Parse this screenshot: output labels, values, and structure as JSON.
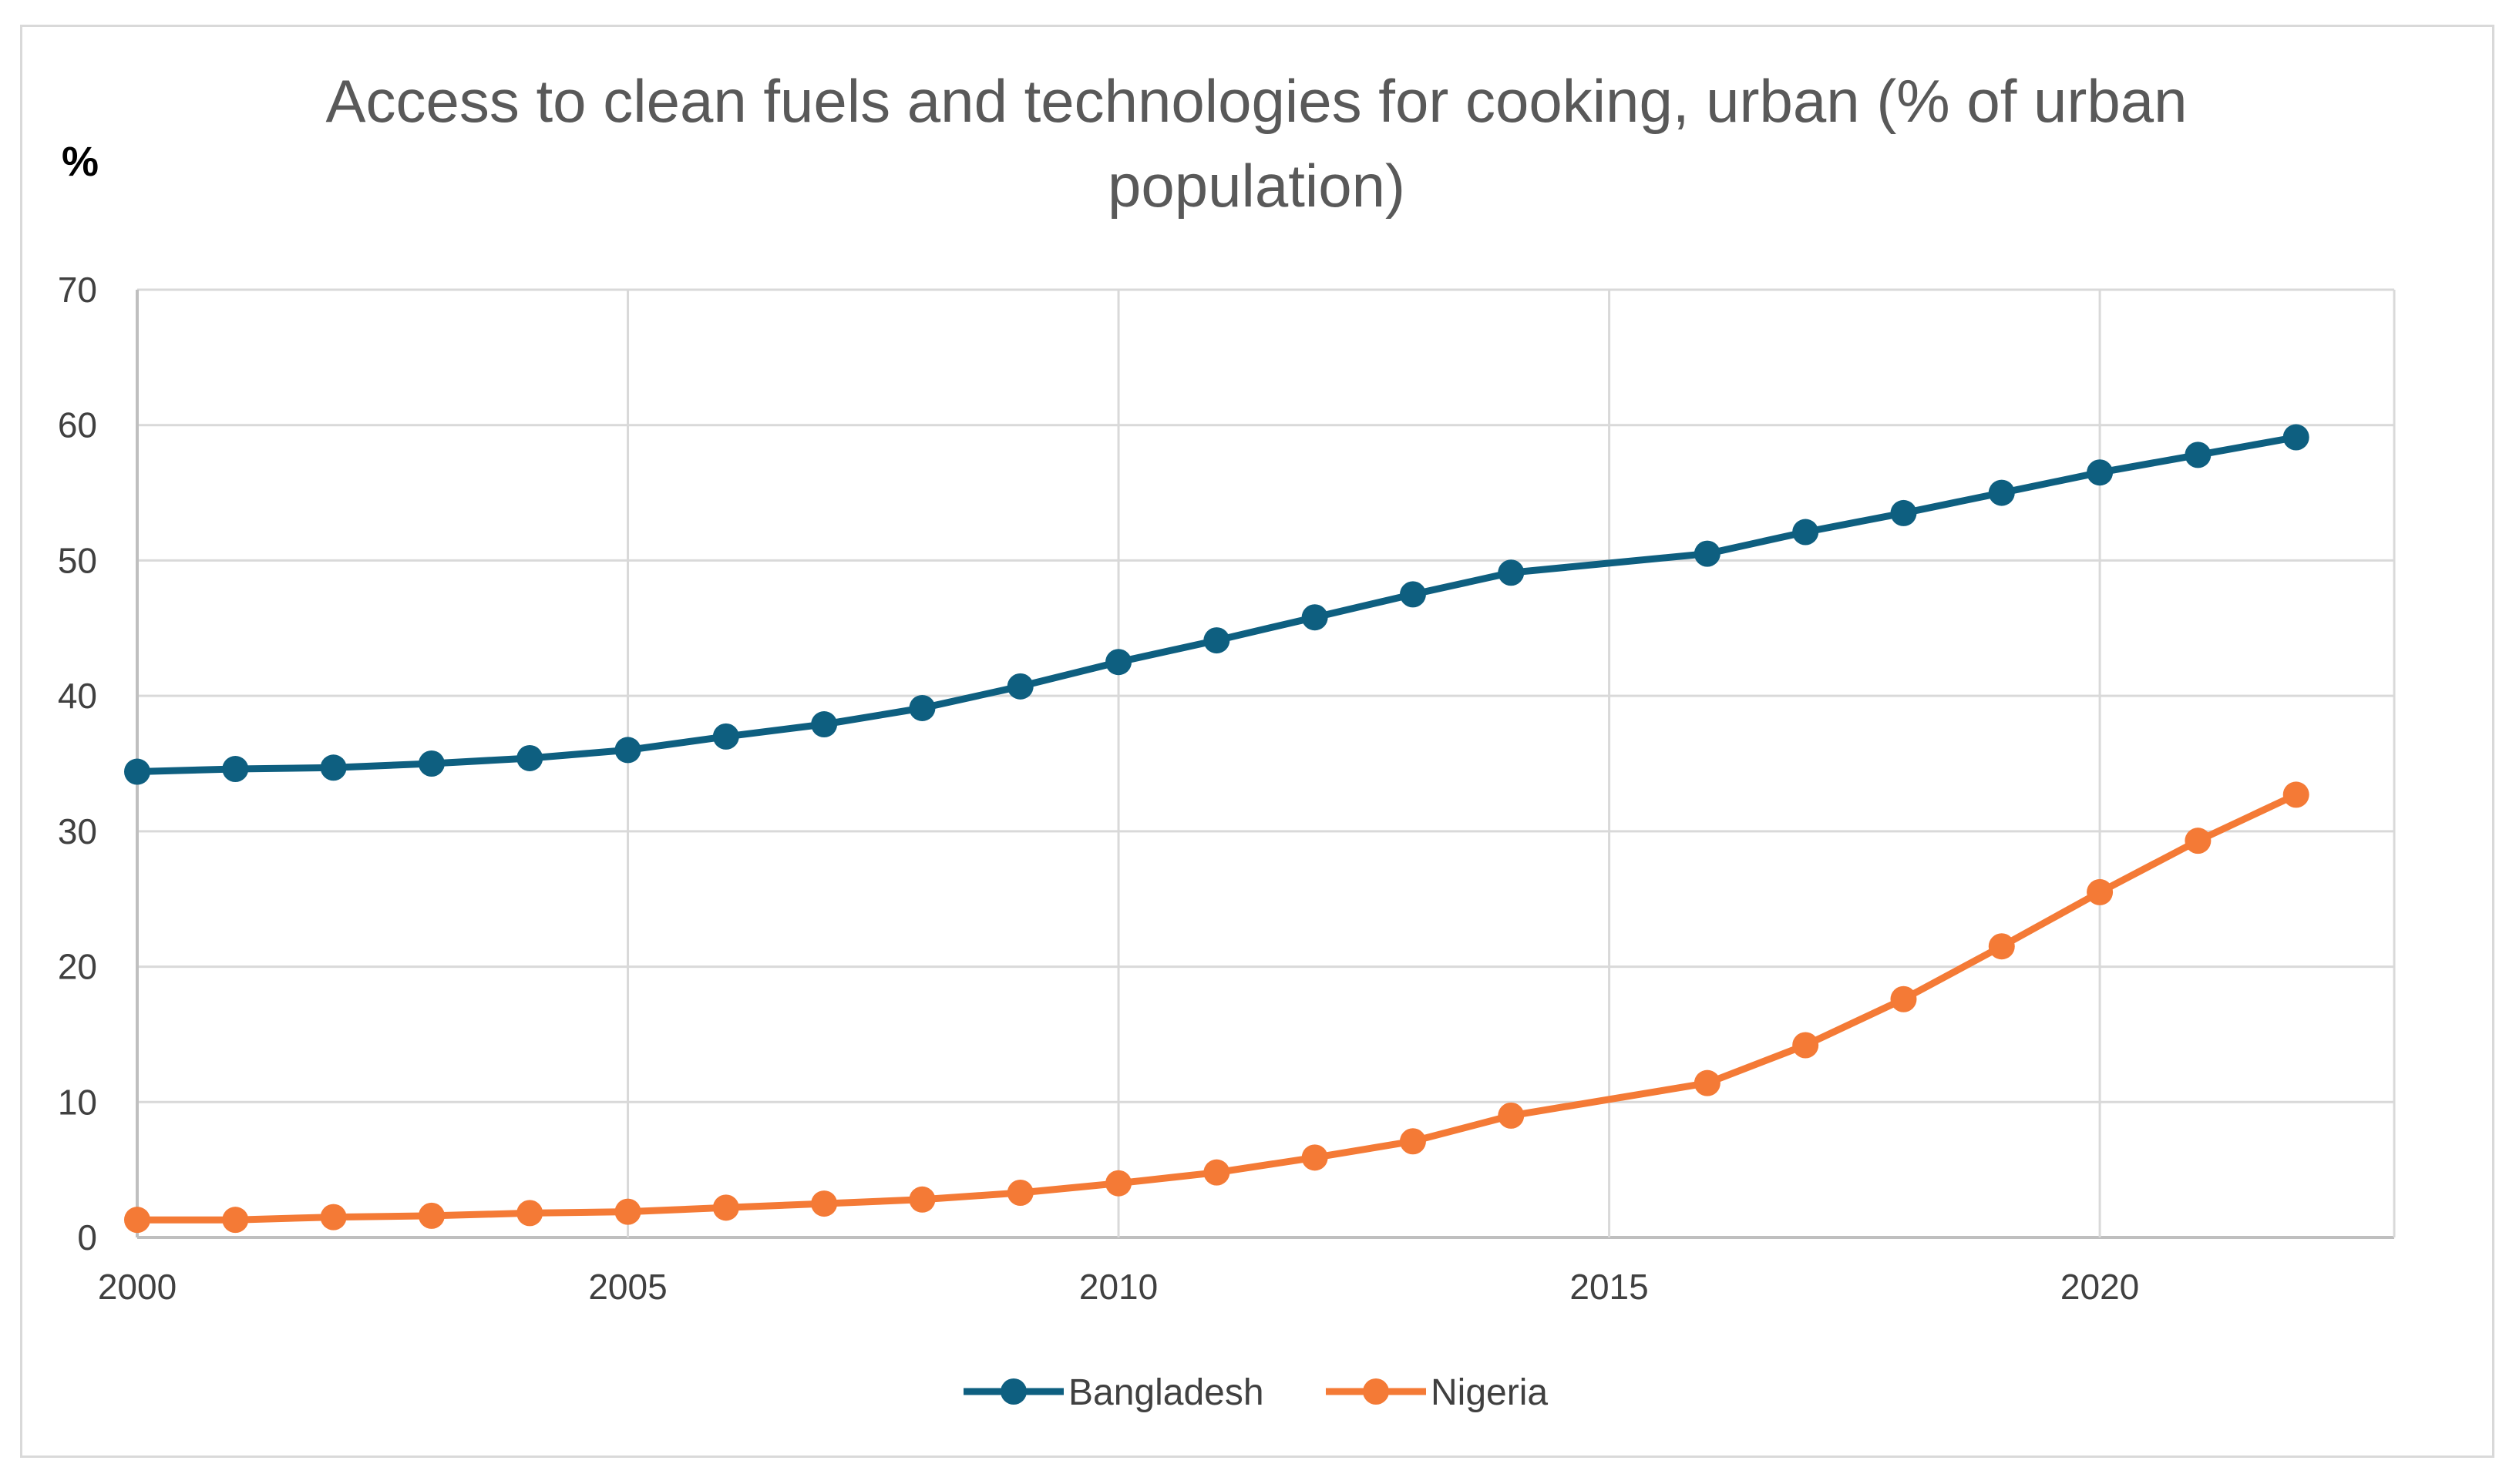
{
  "chart_data": {
    "type": "line",
    "title": "Access to clean fuels and technologies for cooking, urban (% of urban population)",
    "title_lines": [
      "Access to clean fuels and technologies for cooking, urban (% of urban",
      "population)"
    ],
    "ylabel": "%",
    "xlabel": "",
    "xlim": [
      2000,
      2023
    ],
    "ylim": [
      0,
      70
    ],
    "xticks": [
      2000,
      2005,
      2010,
      2015,
      2020
    ],
    "yticks": [
      0,
      10,
      20,
      30,
      40,
      50,
      60,
      70
    ],
    "grid": true,
    "legend_position": "bottom",
    "series": [
      {
        "name": "Bangladesh",
        "color": "#0E5F80",
        "x": [
          2000,
          2001,
          2002,
          2003,
          2004,
          2005,
          2006,
          2007,
          2008,
          2009,
          2010,
          2011,
          2012,
          2013,
          2014,
          2016,
          2017,
          2018,
          2019,
          2020,
          2021,
          2022
        ],
        "values": [
          34.4,
          34.6,
          34.7,
          35.0,
          35.4,
          36.0,
          37.0,
          37.9,
          39.1,
          40.7,
          42.5,
          44.1,
          45.8,
          47.5,
          49.1,
          50.5,
          52.1,
          53.5,
          55.0,
          56.5,
          57.8,
          59.1
        ]
      },
      {
        "name": "Nigeria",
        "color": "#F47A36",
        "x": [
          2000,
          2001,
          2002,
          2003,
          2004,
          2005,
          2006,
          2007,
          2008,
          2009,
          2010,
          2011,
          2012,
          2013,
          2014,
          2016,
          2017,
          2018,
          2019,
          2020,
          2021,
          2022
        ],
        "values": [
          1.3,
          1.3,
          1.5,
          1.6,
          1.8,
          1.9,
          2.2,
          2.5,
          2.8,
          3.3,
          4.0,
          4.8,
          5.9,
          7.1,
          9.0,
          11.4,
          14.2,
          17.6,
          21.5,
          25.5,
          29.3,
          32.7
        ]
      }
    ]
  }
}
